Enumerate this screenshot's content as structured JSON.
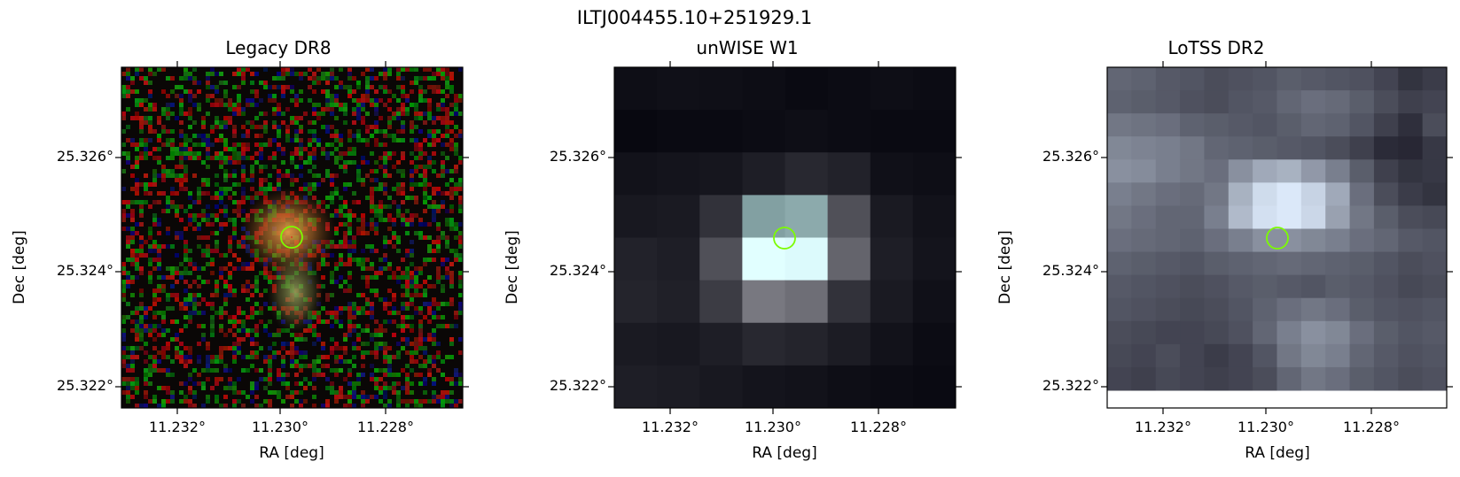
{
  "figure": {
    "title": "ILTJ004455.10+251929.1"
  },
  "panels": [
    {
      "title": "Legacy DR8",
      "xlabel": "RA [deg]",
      "ylabel": "Dec [deg]",
      "xticks": [
        "11.232°",
        "11.230°",
        "11.228°"
      ],
      "yticks": [
        "25.326°",
        "25.324°",
        "25.322°"
      ],
      "marker": "circle",
      "marker_color": "#7cfc00"
    },
    {
      "title": "unWISE W1",
      "xlabel": "RA [deg]",
      "ylabel": "Dec [deg]",
      "xticks": [
        "11.232°",
        "11.230°",
        "11.228°"
      ],
      "yticks": [
        "25.326°",
        "25.324°",
        "25.322°"
      ],
      "marker": "circle",
      "marker_color": "#7cfc00"
    },
    {
      "title": "LoTSS DR2",
      "xlabel": "RA [deg]",
      "ylabel": "Dec [deg]",
      "xticks": [
        "11.232°",
        "11.230°",
        "11.228°"
      ],
      "yticks": [
        "25.326°",
        "25.324°",
        "25.322°"
      ],
      "marker": "circle",
      "marker_color": "#7cfc00"
    }
  ]
}
